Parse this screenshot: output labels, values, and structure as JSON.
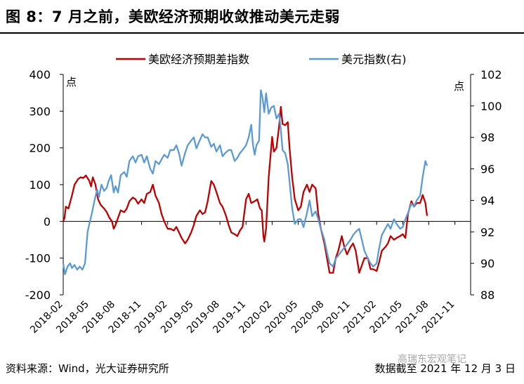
{
  "header": {
    "title": "图 8：7 月之前，美欧经济预期收敛推动美元走弱"
  },
  "footer": {
    "source": "资料来源：Wind，光大证券研究所",
    "cutoff": "数据截至 2021 年 12 月 3 日",
    "watermark": "高瑞东宏观笔记"
  },
  "chart_data": {
    "type": "line",
    "legend_position": "top",
    "y_left": {
      "label": "点",
      "range": [
        -200,
        400
      ],
      "ticks": [
        -200,
        -100,
        0,
        100,
        200,
        300,
        400
      ]
    },
    "y_right": {
      "label": "点",
      "range": [
        88,
        102
      ],
      "ticks": [
        88,
        90,
        92,
        94,
        96,
        98,
        100,
        102
      ]
    },
    "x_ticks": [
      "2018-02",
      "2018-05",
      "2018-08",
      "2018-11",
      "2019-02",
      "2019-05",
      "2019-08",
      "2019-11",
      "2020-02",
      "2020-05",
      "2020-08",
      "2020-11",
      "2021-02",
      "2021-05",
      "2021-08",
      "2021-11"
    ],
    "series": [
      {
        "name": "美欧经济预期差指数",
        "axis": "left",
        "color": "#c00000",
        "points": [
          [
            0,
            0
          ],
          [
            0.15,
            10
          ],
          [
            0.3,
            40
          ],
          [
            0.6,
            35
          ],
          [
            1,
            70
          ],
          [
            1.3,
            100
          ],
          [
            1.7,
            115
          ],
          [
            2,
            120
          ],
          [
            2.3,
            118
          ],
          [
            2.6,
            125
          ],
          [
            3,
            110
          ],
          [
            3.2,
            95
          ],
          [
            3.4,
            120
          ],
          [
            3.7,
            100
          ],
          [
            4,
            60
          ],
          [
            4.3,
            45
          ],
          [
            4.7,
            35
          ],
          [
            5,
            25
          ],
          [
            5.3,
            10
          ],
          [
            5.6,
            0
          ],
          [
            5.8,
            -20
          ],
          [
            6,
            -10
          ],
          [
            6.3,
            10
          ],
          [
            6.6,
            30
          ],
          [
            7,
            25
          ],
          [
            7.3,
            35
          ],
          [
            7.6,
            55
          ],
          [
            8,
            65
          ],
          [
            8.3,
            60
          ],
          [
            8.6,
            48
          ],
          [
            9,
            60
          ],
          [
            9.3,
            50
          ],
          [
            9.6,
            75
          ],
          [
            10,
            80
          ],
          [
            10.3,
            100
          ],
          [
            10.6,
            70
          ],
          [
            11,
            50
          ],
          [
            11.3,
            20
          ],
          [
            11.6,
            0
          ],
          [
            12,
            -20
          ],
          [
            12.3,
            -20
          ],
          [
            12.7,
            -25
          ],
          [
            13,
            -15
          ],
          [
            13.3,
            -30
          ],
          [
            13.6,
            -45
          ],
          [
            14,
            -60
          ],
          [
            14.3,
            -50
          ],
          [
            14.7,
            -30
          ],
          [
            15,
            -10
          ],
          [
            15.3,
            15
          ],
          [
            15.7,
            30
          ],
          [
            16,
            20
          ],
          [
            16.3,
            25
          ],
          [
            16.6,
            55
          ],
          [
            17,
            110
          ],
          [
            17.3,
            100
          ],
          [
            17.6,
            80
          ],
          [
            18,
            50
          ],
          [
            18.3,
            40
          ],
          [
            18.7,
            15
          ],
          [
            19,
            -10
          ],
          [
            19.3,
            -30
          ],
          [
            19.7,
            -35
          ],
          [
            20,
            -40
          ],
          [
            20.3,
            -25
          ],
          [
            20.6,
            -15
          ],
          [
            21,
            60
          ],
          [
            21.3,
            75
          ],
          [
            21.6,
            50
          ],
          [
            22,
            55
          ],
          [
            22.3,
            60
          ],
          [
            22.6,
            35
          ],
          [
            22.8,
            30
          ],
          [
            23,
            -40
          ],
          [
            23.1,
            -55
          ],
          [
            23.3,
            -20
          ],
          [
            23.6,
            120
          ],
          [
            24,
            230
          ],
          [
            24.2,
            190
          ],
          [
            24.5,
            200
          ],
          [
            24.8,
            260
          ],
          [
            25,
            312
          ],
          [
            25.2,
            265
          ],
          [
            25.5,
            262
          ],
          [
            25.8,
            270
          ],
          [
            26,
            200
          ],
          [
            26.3,
            120
          ],
          [
            26.6,
            60
          ],
          [
            27,
            30
          ],
          [
            27.3,
            40
          ],
          [
            27.6,
            80
          ],
          [
            28,
            100
          ],
          [
            28.3,
            80
          ],
          [
            28.6,
            100
          ],
          [
            29,
            90
          ],
          [
            29.3,
            20
          ],
          [
            29.6,
            -20
          ],
          [
            30,
            -60
          ],
          [
            30.3,
            -100
          ],
          [
            30.6,
            -140
          ],
          [
            31,
            -140
          ],
          [
            31.3,
            -100
          ],
          [
            31.6,
            -80
          ],
          [
            32,
            -40
          ],
          [
            32.3,
            -70
          ],
          [
            32.6,
            -90
          ],
          [
            33,
            -70
          ],
          [
            33.3,
            -60
          ],
          [
            33.6,
            -80
          ],
          [
            34,
            -140
          ],
          [
            34.3,
            -120
          ],
          [
            34.6,
            -100
          ],
          [
            35,
            -100
          ],
          [
            35.3,
            -130
          ],
          [
            35.6,
            -130
          ],
          [
            36,
            -135
          ],
          [
            36.3,
            -110
          ],
          [
            36.6,
            -80
          ],
          [
            37,
            -70
          ],
          [
            37.3,
            -60
          ],
          [
            37.6,
            -40
          ],
          [
            38,
            -50
          ],
          [
            38.3,
            -45
          ],
          [
            38.7,
            -40
          ],
          [
            39,
            -35
          ],
          [
            39.3,
            -45
          ],
          [
            39.6,
            20
          ],
          [
            40,
            55
          ],
          [
            40.3,
            40
          ],
          [
            40.6,
            50
          ],
          [
            41,
            50
          ],
          [
            41.3,
            72
          ],
          [
            41.6,
            50
          ],
          [
            41.8,
            15
          ]
        ]
      },
      {
        "name": "美元指数(右)",
        "axis": "right",
        "color": "#5b9bd5",
        "points": [
          [
            0,
            90
          ],
          [
            0.2,
            89.3
          ],
          [
            0.5,
            89.8
          ],
          [
            0.8,
            90
          ],
          [
            1,
            89.7
          ],
          [
            1.3,
            89.9
          ],
          [
            1.6,
            89.6
          ],
          [
            1.9,
            89.8
          ],
          [
            2.2,
            89.6
          ],
          [
            2.5,
            90
          ],
          [
            2.8,
            92
          ],
          [
            3,
            92.5
          ],
          [
            3.3,
            93.2
          ],
          [
            3.6,
            94
          ],
          [
            3.9,
            94.7
          ],
          [
            4.1,
            94.2
          ],
          [
            4.4,
            95
          ],
          [
            4.7,
            94.6
          ],
          [
            5,
            94.8
          ],
          [
            5.2,
            95.2
          ],
          [
            5.5,
            95.6
          ],
          [
            5.8,
            94.5
          ],
          [
            6,
            94.9
          ],
          [
            6.3,
            94.5
          ],
          [
            6.6,
            95.6
          ],
          [
            7,
            95.8
          ],
          [
            7.3,
            95.5
          ],
          [
            7.6,
            96.5
          ],
          [
            8,
            96.8
          ],
          [
            8.3,
            96.4
          ],
          [
            8.6,
            96.8
          ],
          [
            9,
            96.9
          ],
          [
            9.3,
            96.4
          ],
          [
            9.6,
            96.8
          ],
          [
            10,
            96
          ],
          [
            10.3,
            95.7
          ],
          [
            10.6,
            96.5
          ],
          [
            11,
            96.3
          ],
          [
            11.3,
            96.6
          ],
          [
            11.6,
            96.9
          ],
          [
            12,
            96.7
          ],
          [
            12.3,
            97.2
          ],
          [
            12.7,
            97.2
          ],
          [
            13,
            97.5
          ],
          [
            13.3,
            97
          ],
          [
            13.6,
            96.2
          ],
          [
            14,
            97
          ],
          [
            14.3,
            97.5
          ],
          [
            14.7,
            97.8
          ],
          [
            15,
            98
          ],
          [
            15.3,
            97.3
          ],
          [
            15.6,
            97.7
          ],
          [
            16,
            98.2
          ],
          [
            16.3,
            98
          ],
          [
            16.6,
            98
          ],
          [
            17,
            97.4
          ],
          [
            17.3,
            97.6
          ],
          [
            17.6,
            97.1
          ],
          [
            18,
            97.5
          ],
          [
            18.3,
            96.8
          ],
          [
            18.6,
            97
          ],
          [
            19,
            97.2
          ],
          [
            19.3,
            97.2
          ],
          [
            19.7,
            96.5
          ],
          [
            20,
            96.7
          ],
          [
            20.3,
            97
          ],
          [
            20.6,
            97.2
          ],
          [
            21,
            97.5
          ],
          [
            21.3,
            98
          ],
          [
            21.6,
            98.8
          ],
          [
            21.8,
            97.5
          ],
          [
            22,
            96.9
          ],
          [
            22.2,
            97.5
          ],
          [
            22.5,
            97.8
          ],
          [
            22.7,
            101
          ],
          [
            22.9,
            100.5
          ],
          [
            23.1,
            99.6
          ],
          [
            23.3,
            100.8
          ],
          [
            23.6,
            99.5
          ],
          [
            23.9,
            99.9
          ],
          [
            24.2,
            100
          ],
          [
            24.5,
            99.2
          ],
          [
            24.8,
            99.5
          ],
          [
            25,
            98.5
          ],
          [
            25.2,
            97.2
          ],
          [
            25.5,
            97
          ],
          [
            25.8,
            96.3
          ],
          [
            26,
            95.2
          ],
          [
            26.3,
            93.5
          ],
          [
            26.6,
            92.5
          ],
          [
            27,
            92.8
          ],
          [
            27.3,
            92.8
          ],
          [
            27.6,
            92.3
          ],
          [
            28,
            93.2
          ],
          [
            28.3,
            94
          ],
          [
            28.6,
            93
          ],
          [
            29,
            93.3
          ],
          [
            29.3,
            92.8
          ],
          [
            29.6,
            92.2
          ],
          [
            30,
            91.5
          ],
          [
            30.3,
            90.7
          ],
          [
            30.6,
            90
          ],
          [
            31,
            89.8
          ],
          [
            31.3,
            90.3
          ],
          [
            31.6,
            90.5
          ],
          [
            32,
            90.8
          ],
          [
            32.3,
            91
          ],
          [
            32.6,
            91.2
          ],
          [
            33,
            91.5
          ],
          [
            33.3,
            91.8
          ],
          [
            33.6,
            92
          ],
          [
            34,
            92.2
          ],
          [
            34.3,
            91.5
          ],
          [
            34.6,
            90.8
          ],
          [
            35,
            90.3
          ],
          [
            35.3,
            90
          ],
          [
            35.6,
            89.8
          ],
          [
            36,
            90
          ],
          [
            36.3,
            91
          ],
          [
            36.6,
            91.8
          ],
          [
            37,
            92.2
          ],
          [
            37.3,
            92.5
          ],
          [
            37.6,
            92.2
          ],
          [
            38,
            92.8
          ],
          [
            38.3,
            92.5
          ],
          [
            38.7,
            92.2
          ],
          [
            39,
            92.3
          ],
          [
            39.3,
            92.8
          ],
          [
            39.6,
            93.2
          ],
          [
            40,
            93.8
          ],
          [
            40.3,
            93.6
          ],
          [
            40.6,
            94
          ],
          [
            41,
            94.3
          ],
          [
            41.3,
            95.5
          ],
          [
            41.6,
            96.5
          ],
          [
            41.8,
            96.2
          ]
        ]
      }
    ]
  }
}
